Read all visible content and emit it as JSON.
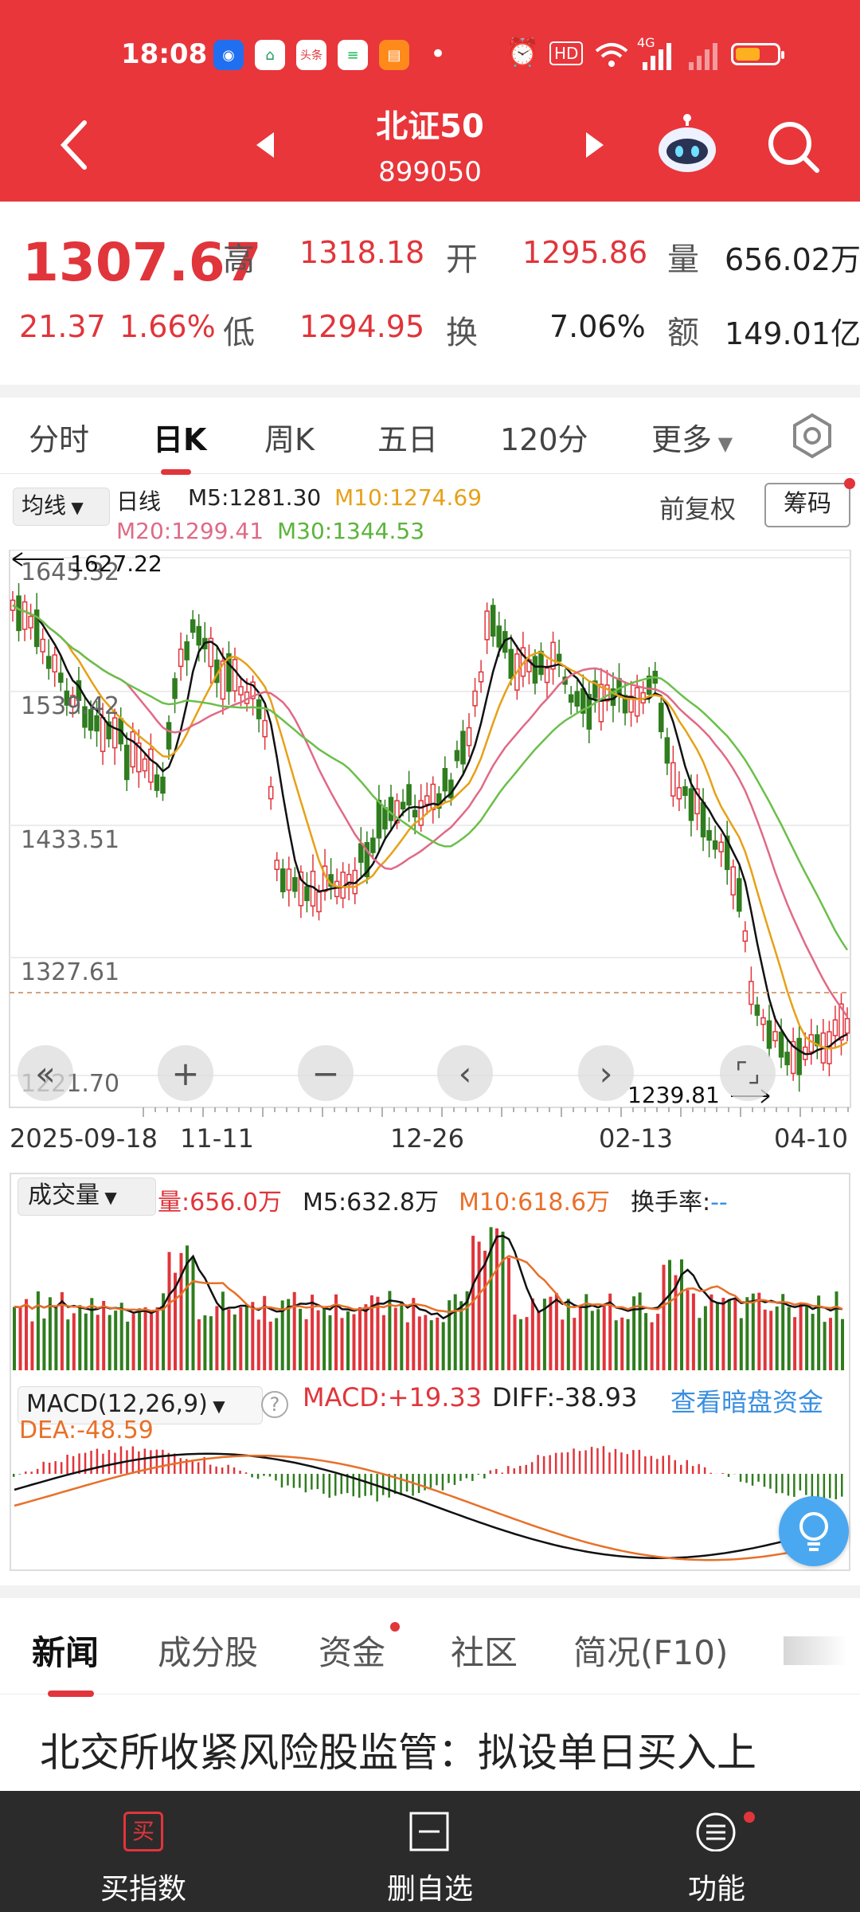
{
  "status_bar": {
    "time": "18:08",
    "network": "4G",
    "battery_color": "#ffb020"
  },
  "header": {
    "name": "北证50",
    "code": "899050"
  },
  "quote": {
    "price": "1307.67",
    "change": "21.37",
    "change_pct": "1.66%",
    "high_label": "高",
    "high": "1318.18",
    "open_label": "开",
    "open": "1295.86",
    "vol_label": "量",
    "vol": "656.02万",
    "low_label": "低",
    "low": "1294.95",
    "turn_label": "换",
    "turn": "7.06%",
    "amt_label": "额",
    "amt": "149.01亿"
  },
  "tabs": [
    "分时",
    "日K",
    "周K",
    "五日",
    "120分",
    "更多"
  ],
  "ma_bar": {
    "type": "均线",
    "period": "日线",
    "m5": "M5:1281.30",
    "m10": "M10:1274.69",
    "m20": "M20:1299.41",
    "m30": "M30:1344.53",
    "adj": "前复权",
    "chip": "筹码"
  },
  "chart_data": {
    "type": "candlestick",
    "y_ticks": [
      "1645.32",
      "1539.42",
      "1433.51",
      "1327.61",
      "1221.70"
    ],
    "max_label": "1627.22",
    "min_label": "1239.81",
    "x_labels": [
      "2025-09-18",
      "11-11",
      "12-26",
      "02-13",
      "04-10"
    ],
    "colors": {
      "up": "#e0353b",
      "down": "#2f7d1e",
      "m5": "#111111",
      "m10": "#e6a117",
      "m20": "#e06a86",
      "m30": "#6bbf4a"
    }
  },
  "volume": {
    "label": "成交量",
    "vol": "量:656.0万",
    "m5": "M5:632.8万",
    "m10": "M10:618.6万",
    "turnover": "换手率:",
    "turnover_val": "--"
  },
  "macd": {
    "label": "MACD(12,26,9)",
    "macd": "MACD:+19.33",
    "diff": "DIFF:-38.93",
    "dea": "DEA:-48.59",
    "link": "查看暗盘资金"
  },
  "bottom_tabs": [
    "新闻",
    "成分股",
    "资金",
    "社区",
    "简况(F10)"
  ],
  "headline": "北交所收紧风险股监管：拟设单日买入上",
  "bottom_bar": [
    {
      "label": "买指数",
      "icon": "买"
    },
    {
      "label": "删自选"
    },
    {
      "label": "功能"
    }
  ]
}
